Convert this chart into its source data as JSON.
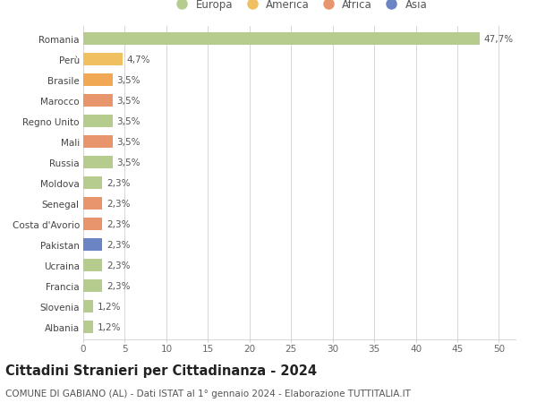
{
  "countries": [
    "Romania",
    "Perù",
    "Brasile",
    "Marocco",
    "Regno Unito",
    "Mali",
    "Russia",
    "Moldova",
    "Senegal",
    "Costa d'Avorio",
    "Pakistan",
    "Ucraina",
    "Francia",
    "Slovenia",
    "Albania"
  ],
  "values": [
    47.7,
    4.7,
    3.5,
    3.5,
    3.5,
    3.5,
    3.5,
    2.3,
    2.3,
    2.3,
    2.3,
    2.3,
    2.3,
    1.2,
    1.2
  ],
  "labels": [
    "47,7%",
    "4,7%",
    "3,5%",
    "3,5%",
    "3,5%",
    "3,5%",
    "3,5%",
    "2,3%",
    "2,3%",
    "2,3%",
    "2,3%",
    "2,3%",
    "2,3%",
    "1,2%",
    "1,2%"
  ],
  "colors": [
    "#b5cc8e",
    "#f0c060",
    "#f0a855",
    "#e8956d",
    "#b5cc8e",
    "#e8956d",
    "#b5cc8e",
    "#b5cc8e",
    "#e8956d",
    "#e8956d",
    "#6b85c4",
    "#b5cc8e",
    "#b5cc8e",
    "#b5cc8e",
    "#b5cc8e"
  ],
  "legend_labels": [
    "Europa",
    "America",
    "Africa",
    "Asia"
  ],
  "legend_colors": [
    "#b5cc8e",
    "#f0c060",
    "#e8956d",
    "#6b85c4"
  ],
  "title": "Cittadini Stranieri per Cittadinanza - 2024",
  "subtitle": "COMUNE DI GABIANO (AL) - Dati ISTAT al 1° gennaio 2024 - Elaborazione TUTTITALIA.IT",
  "xlim": [
    0,
    52
  ],
  "xticks": [
    0,
    5,
    10,
    15,
    20,
    25,
    30,
    35,
    40,
    45,
    50
  ],
  "bg_color": "#ffffff",
  "grid_color": "#d0d0d0",
  "bar_height": 0.62,
  "title_fontsize": 10.5,
  "subtitle_fontsize": 7.5,
  "tick_fontsize": 7.5,
  "label_fontsize": 7.5,
  "legend_fontsize": 8.5
}
